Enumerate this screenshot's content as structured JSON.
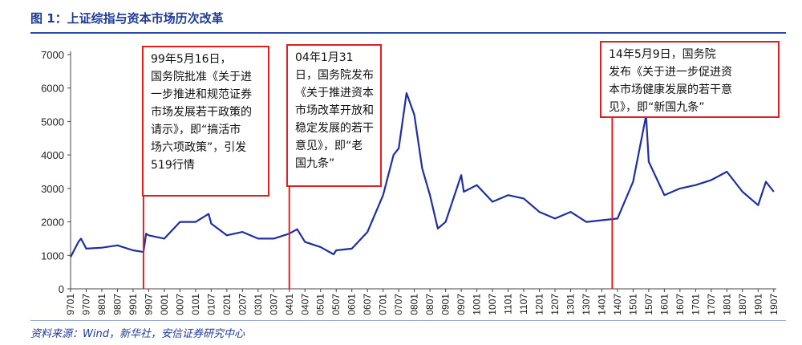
{
  "header": {
    "title": "图 1：上证综指与资本市场历次改革"
  },
  "footer": {
    "source": "资料来源：Wind，新华社，安信证券研究中心"
  },
  "colors": {
    "line": "#1f2fa0",
    "annotation_border": "#e02020",
    "title": "#1f3a93"
  },
  "chart_data": {
    "type": "line",
    "title": "图 1：上证综指与资本市场历次改革",
    "xlabel": "",
    "ylabel": "",
    "ylim": [
      0,
      7000
    ],
    "yticks": [
      0,
      1000,
      2000,
      3000,
      4000,
      5000,
      6000,
      7000
    ],
    "grid": false,
    "legend": "none",
    "x_tick_labels": [
      "9701",
      "9707",
      "9801",
      "9807",
      "9901",
      "9907",
      "0001",
      "0007",
      "0101",
      "0107",
      "0201",
      "0207",
      "0301",
      "0307",
      "0401",
      "0407",
      "0501",
      "0507",
      "0601",
      "0607",
      "0701",
      "0707",
      "0801",
      "0807",
      "0901",
      "0907",
      "1001",
      "1007",
      "1101",
      "1107",
      "1201",
      "1207",
      "1301",
      "1307",
      "1401",
      "1407",
      "1501",
      "1507",
      "1601",
      "1607",
      "1701",
      "1707",
      "1801",
      "1807",
      "1901",
      "1907"
    ],
    "series": [
      {
        "x": [
          "9701",
          "9704",
          "9705",
          "9707",
          "9801",
          "9807",
          "9901",
          "9905",
          "9906",
          "9907",
          "0001",
          "0007",
          "0101",
          "0106",
          "0107",
          "0201",
          "0207",
          "0301",
          "0307",
          "0401",
          "0404",
          "0407",
          "0501",
          "0506",
          "0507",
          "0601",
          "0607",
          "0701",
          "0705",
          "0707",
          "0710",
          "0801",
          "0804",
          "0807",
          "0810",
          "0901",
          "0907",
          "0908",
          "1001",
          "1007",
          "1101",
          "1107",
          "1201",
          "1207",
          "1301",
          "1307",
          "1401",
          "1407",
          "1501",
          "1506",
          "1507",
          "1601",
          "1607",
          "1701",
          "1707",
          "1801",
          "1807",
          "1901",
          "1904",
          "1907"
        ],
        "values": [
          950,
          1400,
          1500,
          1200,
          1230,
          1300,
          1150,
          1100,
          1650,
          1600,
          1500,
          2000,
          2000,
          2240,
          1950,
          1600,
          1700,
          1500,
          1500,
          1650,
          1780,
          1400,
          1250,
          1030,
          1150,
          1200,
          1700,
          2800,
          4000,
          4200,
          5850,
          5200,
          3600,
          2800,
          1800,
          2000,
          3400,
          2900,
          3100,
          2600,
          2800,
          2700,
          2300,
          2100,
          2300,
          2000,
          2050,
          2100,
          3200,
          5180,
          3800,
          2800,
          3000,
          3100,
          3250,
          3500,
          2900,
          2500,
          3200,
          2900
        ]
      }
    ],
    "annotations": [
      {
        "at": "9905",
        "text": "99年5月16日，国务院批准《关于进一步推进和规范证券市场发展若干政策的请示》，即“搞活市场六项政策”，引发519行情"
      },
      {
        "at": "0401",
        "text": "04年1月31日，国务院发布《关于推进资本市场改革开放和稳定发展的若干意见》，即“老国九条”"
      },
      {
        "at": "1405",
        "text": "14年5月9日，国务院发布《关于进一步促进资本市场健康发展的若干意见》，即“新国九条”"
      }
    ]
  }
}
